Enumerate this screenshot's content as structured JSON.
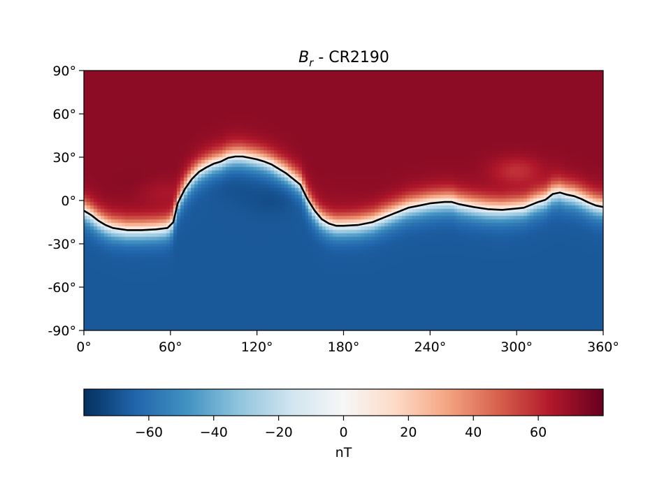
{
  "chart_data": {
    "type": "heatmap",
    "title_main": "B",
    "title_sub": "r",
    "title_suffix": " - CR2190",
    "xlabel": "",
    "ylabel": "",
    "xlim": [
      0,
      360
    ],
    "ylim": [
      -90,
      90
    ],
    "x_ticks": [
      0,
      60,
      120,
      180,
      240,
      300,
      360
    ],
    "x_tick_labels": [
      "0°",
      "60°",
      "120°",
      "180°",
      "240°",
      "300°",
      "360°"
    ],
    "y_ticks": [
      90,
      60,
      30,
      0,
      -30,
      -60,
      -90
    ],
    "y_tick_labels": [
      "90°",
      "60°",
      "30°",
      "0°",
      "-30°",
      "-60°",
      "-90°"
    ],
    "colormap": "RdBu_r",
    "color_range": [
      -80,
      80
    ],
    "colorbar": {
      "orientation": "horizontal",
      "label": "nT",
      "ticks": [
        -60,
        -40,
        -20,
        0,
        20,
        40,
        60
      ],
      "tick_labels": [
        "−60",
        "−40",
        "−20",
        "0",
        "20",
        "40",
        "60"
      ]
    },
    "neutral_line": {
      "lon": [
        0,
        5,
        10,
        15,
        20,
        30,
        40,
        50,
        58,
        62,
        65,
        70,
        75,
        80,
        85,
        90,
        95,
        100,
        105,
        110,
        115,
        120,
        125,
        130,
        135,
        140,
        145,
        150,
        155,
        160,
        165,
        170,
        175,
        180,
        190,
        200,
        210,
        215,
        220,
        225,
        230,
        240,
        250,
        255,
        260,
        270,
        280,
        290,
        300,
        305,
        310,
        315,
        320,
        325,
        330,
        335,
        340,
        345,
        350,
        355,
        360
      ],
      "lat": [
        -7,
        -10,
        -14,
        -17,
        -19,
        -20.5,
        -20.5,
        -20,
        -19,
        -15,
        -2,
        8,
        15,
        20,
        23,
        25.5,
        27,
        29.5,
        30.5,
        30.5,
        29.5,
        28.5,
        27,
        25,
        22,
        19,
        15,
        11,
        1,
        -7,
        -13,
        -16,
        -17.5,
        -17.5,
        -17,
        -15,
        -11,
        -9,
        -7,
        -5,
        -4,
        -2,
        -1,
        -1,
        -2.5,
        -4.5,
        -6,
        -6.5,
        -5.5,
        -5,
        -3,
        -1,
        0.5,
        4.5,
        5.5,
        4,
        3,
        1,
        -1.5,
        -3.5,
        -4.5
      ]
    },
    "field_model": {
      "north_value": 72,
      "south_value": -68,
      "interior_features": [
        {
          "lon": 38,
          "lat": 12,
          "value": 75
        },
        {
          "lon": 55,
          "lat": 5,
          "value": 60
        },
        {
          "lon": 105,
          "lat": 8,
          "value": -72
        },
        {
          "lon": 130,
          "lat": 0,
          "value": -75
        },
        {
          "lon": 175,
          "lat": 3,
          "value": 70
        },
        {
          "lon": 300,
          "lat": 20,
          "value": 45
        }
      ]
    }
  }
}
